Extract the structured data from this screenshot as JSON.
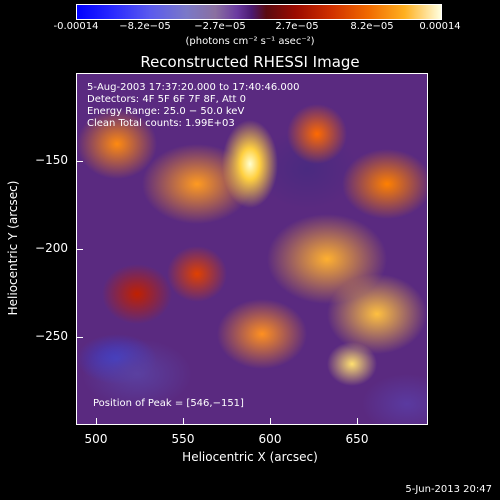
{
  "colorbar": {
    "ticks": [
      "-0.00014",
      "−8.2e−05",
      "−2.7e−05",
      "2.7e−05",
      "8.2e−05",
      "0.00014"
    ],
    "unit": "(photons cm⁻² s⁻¹ asec⁻²)"
  },
  "plot": {
    "title": "Reconstructed RHESSI Image",
    "info": [
      "5‑Aug‑2003 17:37:20.000 to 17:40:46.000",
      "Detectors: 4F 5F 6F 7F 8F, Att 0",
      "Energy Range: 25.0 − 50.0 keV",
      "Clean     Total counts: 1.99E+03"
    ],
    "peak": "Position of Peak = [546,−151]",
    "x_ticks": [
      "500",
      "550",
      "600",
      "650"
    ],
    "y_ticks": [
      "−150",
      "−200",
      "−250"
    ],
    "xlabel": "Heliocentric X (arcsec)",
    "ylabel": "Heliocentric Y (arcsec)"
  },
  "timestamp": "5‑Jun‑2013 20:47",
  "colors": {
    "background": "#000000",
    "text": "#ffffff"
  }
}
